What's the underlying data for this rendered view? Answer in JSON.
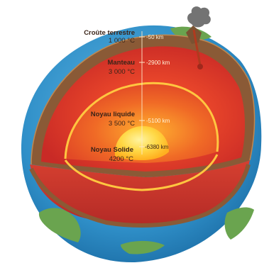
{
  "layers": [
    {
      "key": "crust",
      "name": "Croûte terrestre",
      "temp": "1 000 °C",
      "depth": "-50 km"
    },
    {
      "key": "mantle",
      "name": "Manteau",
      "temp": "3 000 °C",
      "depth": "-2900 km"
    },
    {
      "key": "outer-core",
      "name": "Noyau liquide",
      "temp": "3 500 °C",
      "depth": "-5100 km"
    },
    {
      "key": "inner-core",
      "name": "Noyau Solide",
      "temp": "4200 °C",
      "depth": "-6380 km"
    }
  ],
  "colors": {
    "ocean": "#2f8fc8",
    "land": "#6aa44f",
    "crust": "#8a5a36",
    "mantle": "#d8332a",
    "outer_core": "#e8552a",
    "inner_core": "#ffd040",
    "core_ring": "#ffc640"
  }
}
